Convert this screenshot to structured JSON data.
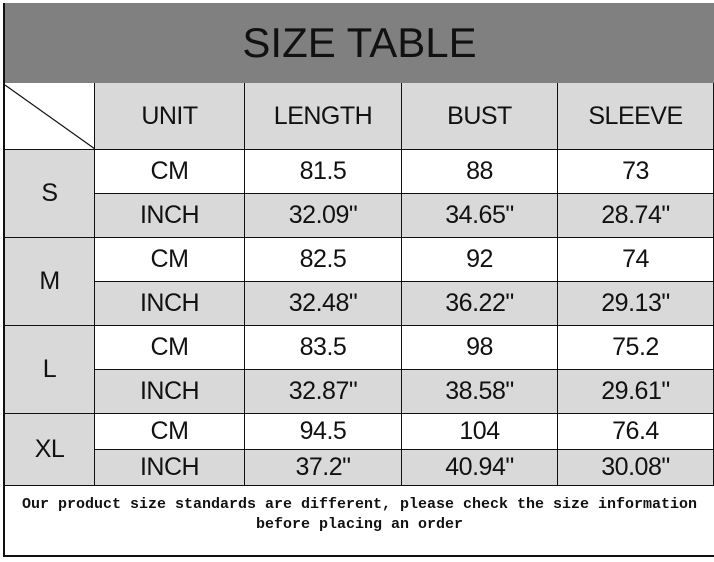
{
  "title": "SIZE TABLE",
  "headers": [
    "UNIT",
    "LENGTH",
    "BUST",
    "SLEEVE"
  ],
  "sizes": [
    {
      "size": "S",
      "rows": [
        [
          "CM",
          "81.5",
          "88",
          "73"
        ],
        [
          "INCH",
          "32.09\"",
          "34.65\"",
          "28.74\""
        ]
      ]
    },
    {
      "size": "M",
      "rows": [
        [
          "CM",
          "82.5",
          "92",
          "74"
        ],
        [
          "INCH",
          "32.48\"",
          "36.22\"",
          "29.13\""
        ]
      ]
    },
    {
      "size": "L",
      "rows": [
        [
          "CM",
          "83.5",
          "98",
          "75.2"
        ],
        [
          "INCH",
          "32.87\"",
          "38.58\"",
          "29.61\""
        ]
      ]
    },
    {
      "size": "XL",
      "rows": [
        [
          "CM",
          "94.5",
          "104",
          "76.4"
        ],
        [
          "INCH",
          "37.2\"",
          "40.94\"",
          "30.08\""
        ]
      ]
    }
  ],
  "note": "Our product size standards are different, please check the size information before placing an order",
  "colors": {
    "title_bg": "#808080",
    "cell_gray": "#d9d9d9"
  }
}
